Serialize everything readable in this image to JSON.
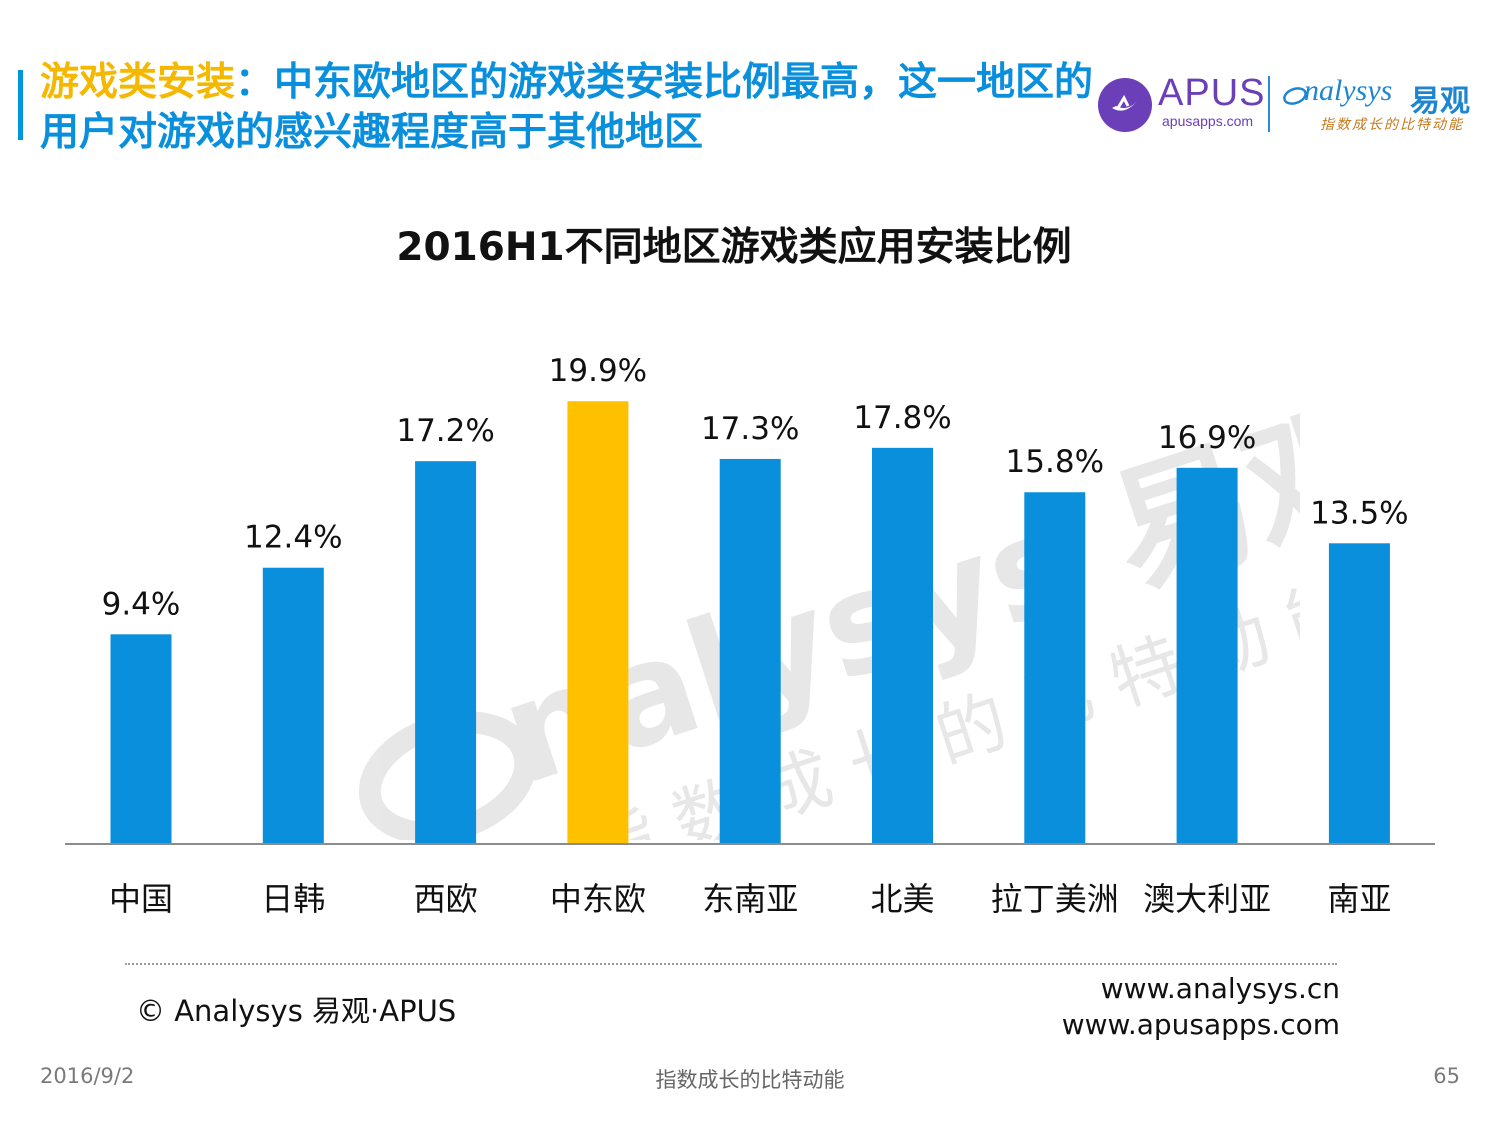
{
  "header": {
    "title_highlight": "游戏类安装",
    "title_rest": "：中东欧地区的游戏类安装比例最高，这一地区的用户对游戏的感兴趣程度高于其他地区"
  },
  "logos": {
    "apus_name": "APUS",
    "apus_url": "apusapps.com",
    "analysys_name": "nalysys",
    "analysys_cn": "易观",
    "analysys_slogan": "指数成长的比特动能"
  },
  "watermark": {
    "brand": "nalysys 易观",
    "slogan": "指数成长的比特动能"
  },
  "chart_data": {
    "type": "bar",
    "title": "2016H1不同地区游戏类应用安装比例",
    "categories": [
      "中国",
      "日韩",
      "西欧",
      "中东欧",
      "东南亚",
      "北美",
      "拉丁美洲",
      "澳大利亚",
      "南亚"
    ],
    "values": [
      9.4,
      12.4,
      17.2,
      19.9,
      17.3,
      17.8,
      15.8,
      16.9,
      13.5
    ],
    "value_labels": [
      "9.4%",
      "12.4%",
      "17.2%",
      "19.9%",
      "17.3%",
      "17.8%",
      "15.8%",
      "16.9%",
      "13.5%"
    ],
    "unit": "%",
    "ylim": [
      0,
      23
    ],
    "highlight_index": 3,
    "colors": {
      "default": "#0a8fdc",
      "highlight": "#ffc000",
      "axis": "#8c8c8c"
    },
    "grid": false,
    "legend": "none"
  },
  "footer": {
    "copyright": "© Analysys 易观·APUS",
    "site1": "www.analysys.cn",
    "site2": "www.apusapps.com",
    "date": "2016/9/2",
    "slogan": "指数成长的比特动能",
    "page": "65"
  }
}
